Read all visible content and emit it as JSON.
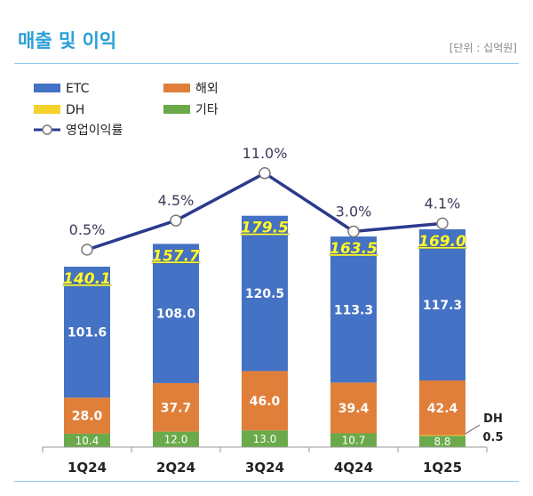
{
  "header": {
    "title": "매출 및 이익",
    "unit": "[단위 : 십억원]"
  },
  "colors": {
    "etc": "#4472c4",
    "overseas": "#e07f3a",
    "dh": "#f5d12c",
    "other": "#6aaa4a",
    "line": "#2b3a8c",
    "total_label": "#ffff33"
  },
  "chart_data": {
    "type": "bar",
    "stacked": true,
    "categories": [
      "1Q24",
      "2Q24",
      "3Q24",
      "4Q24",
      "1Q25"
    ],
    "series": [
      {
        "key": "other",
        "name": "기타",
        "values": [
          10.4,
          12.0,
          13.0,
          10.7,
          8.8
        ]
      },
      {
        "key": "dh",
        "name": "DH",
        "values": [
          0,
          0,
          0,
          0,
          0.5
        ]
      },
      {
        "key": "overseas",
        "name": "해외",
        "values": [
          28.0,
          37.7,
          46.0,
          39.4,
          42.4
        ]
      },
      {
        "key": "etc",
        "name": "ETC",
        "values": [
          101.6,
          108.0,
          120.5,
          113.3,
          117.3
        ]
      }
    ],
    "totals": [
      140.1,
      157.7,
      179.5,
      163.5,
      169.0
    ],
    "line_series": {
      "name": "영업이익률",
      "values": [
        0.5,
        4.5,
        11.0,
        3.0,
        4.1
      ],
      "labels": [
        "0.5%",
        "4.5%",
        "11.0%",
        "3.0%",
        "4.1%"
      ]
    },
    "dh_callout": {
      "label": "DH",
      "value": "0.5"
    },
    "legend_position": "top-left",
    "grid": false
  }
}
